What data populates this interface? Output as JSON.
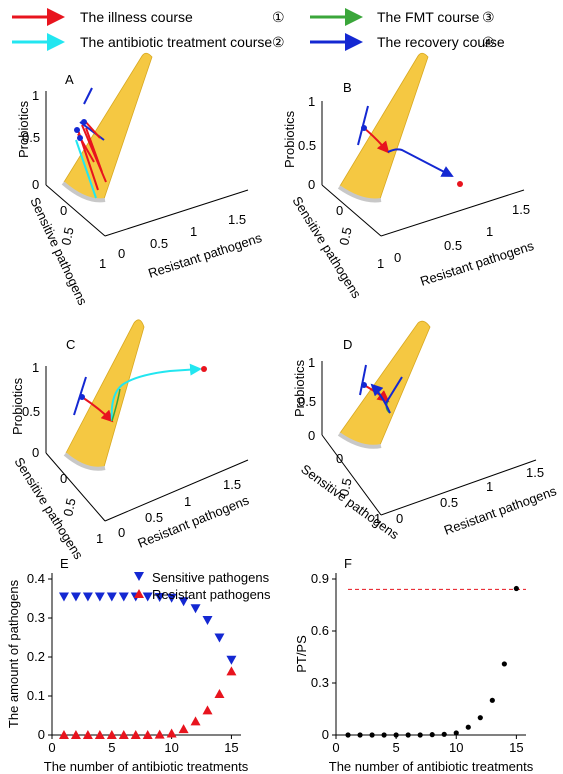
{
  "legend": {
    "items": [
      {
        "label": "The illness course",
        "num": "①",
        "color": "#e8141e"
      },
      {
        "label": "The antibiotic treatment course",
        "num": "②",
        "color": "#22e6f0"
      },
      {
        "label": "The FMT course",
        "num": "③",
        "color": "#3aa63a"
      },
      {
        "label": "The recovery course",
        "num": "④",
        "color": "#1428d2"
      }
    ]
  },
  "panels3d": [
    {
      "letter": "A",
      "zlabel": "Probiotics",
      "ylabel": "Sensitive pathogens",
      "xlabel": "Resistant pathogens",
      "zticks": [
        "1",
        "0.5",
        "0"
      ],
      "xticks": [
        "0",
        "0.5",
        "1",
        "1.5"
      ],
      "yticks": [
        "0",
        "0.5",
        "1"
      ]
    },
    {
      "letter": "B",
      "zlabel": "Probiotics",
      "ylabel": "Sensitive pathogens",
      "xlabel": "Resistant pathogens",
      "zticks": [
        "1",
        "0.5",
        "0"
      ],
      "xticks": [
        "0",
        "0.5",
        "1",
        "1.5"
      ],
      "yticks": [
        "0",
        "0.5",
        "1"
      ]
    },
    {
      "letter": "C",
      "zlabel": "Probiotics",
      "ylabel": "Sensitive pathogens",
      "xlabel": "Resistant pathogens",
      "zticks": [
        "1",
        "0.5",
        "0"
      ],
      "xticks": [
        "0",
        "0.5",
        "1",
        "1.5"
      ],
      "yticks": [
        "0",
        "0.5",
        "1"
      ]
    },
    {
      "letter": "D",
      "zlabel": "Probiotics",
      "ylabel": "Sensitive pathogens",
      "xlabel": "Resistant pathogens",
      "zticks": [
        "1",
        "0.5",
        "0"
      ],
      "xticks": [
        "0",
        "0.5",
        "1",
        "1.5"
      ],
      "yticks": [
        "0",
        "0.5",
        "1"
      ]
    }
  ],
  "colors": {
    "sensitive": "#1428d2",
    "resistant": "#e8141e",
    "surface": "#f5c842",
    "points": "#000000",
    "threshold": "#e8141e"
  },
  "chart_data": [
    {
      "letter": "E",
      "type": "scatter",
      "xlabel": "The number of antibiotic treatments",
      "ylabel": "The amount of pathogens",
      "xlim": [
        0,
        15.8
      ],
      "ylim": [
        0,
        0.4
      ],
      "xticks": [
        0,
        5,
        10,
        15
      ],
      "yticks": [
        0,
        0.1,
        0.2,
        0.3,
        0.4
      ],
      "ytick_labels": [
        "0",
        "0.1",
        "0.2",
        "0.3",
        "0.4"
      ],
      "series": [
        {
          "name": "Sensitive pathogens",
          "marker": "triangle-down",
          "color": "#1428d2",
          "x": [
            1,
            2,
            3,
            4,
            5,
            6,
            7,
            8,
            9,
            10,
            11,
            12,
            13,
            14,
            15
          ],
          "y": [
            0.355,
            0.355,
            0.355,
            0.355,
            0.355,
            0.355,
            0.355,
            0.355,
            0.354,
            0.352,
            0.343,
            0.325,
            0.295,
            0.25,
            0.193
          ]
        },
        {
          "name": "Resistant pathogens",
          "marker": "triangle-up",
          "color": "#e8141e",
          "x": [
            1,
            2,
            3,
            4,
            5,
            6,
            7,
            8,
            9,
            10,
            11,
            12,
            13,
            14,
            15
          ],
          "y": [
            0.0,
            0.0,
            0.0,
            0.0,
            0.0,
            0.0,
            0.0,
            0.0,
            0.001,
            0.004,
            0.015,
            0.035,
            0.063,
            0.105,
            0.163
          ]
        }
      ]
    },
    {
      "letter": "F",
      "type": "scatter",
      "xlabel": "The number of antibiotic treatments",
      "ylabel": "PT/PS",
      "xlim": [
        0,
        15.8
      ],
      "ylim": [
        0,
        0.9
      ],
      "xticks": [
        0,
        5,
        10,
        15
      ],
      "yticks": [
        0,
        0.3,
        0.6,
        0.9
      ],
      "ytick_labels": [
        "0",
        "0.3",
        "0.6",
        "0.9"
      ],
      "threshold": 0.84,
      "series": [
        {
          "name": "",
          "marker": "circle",
          "color": "#000000",
          "x": [
            1,
            2,
            3,
            4,
            5,
            6,
            7,
            8,
            9,
            10,
            11,
            12,
            13,
            14,
            15
          ],
          "y": [
            0.0,
            0.0,
            0.0,
            0.0,
            0.0,
            0.0,
            0.0,
            0.002,
            0.004,
            0.012,
            0.045,
            0.1,
            0.2,
            0.41,
            0.845
          ]
        }
      ]
    }
  ]
}
